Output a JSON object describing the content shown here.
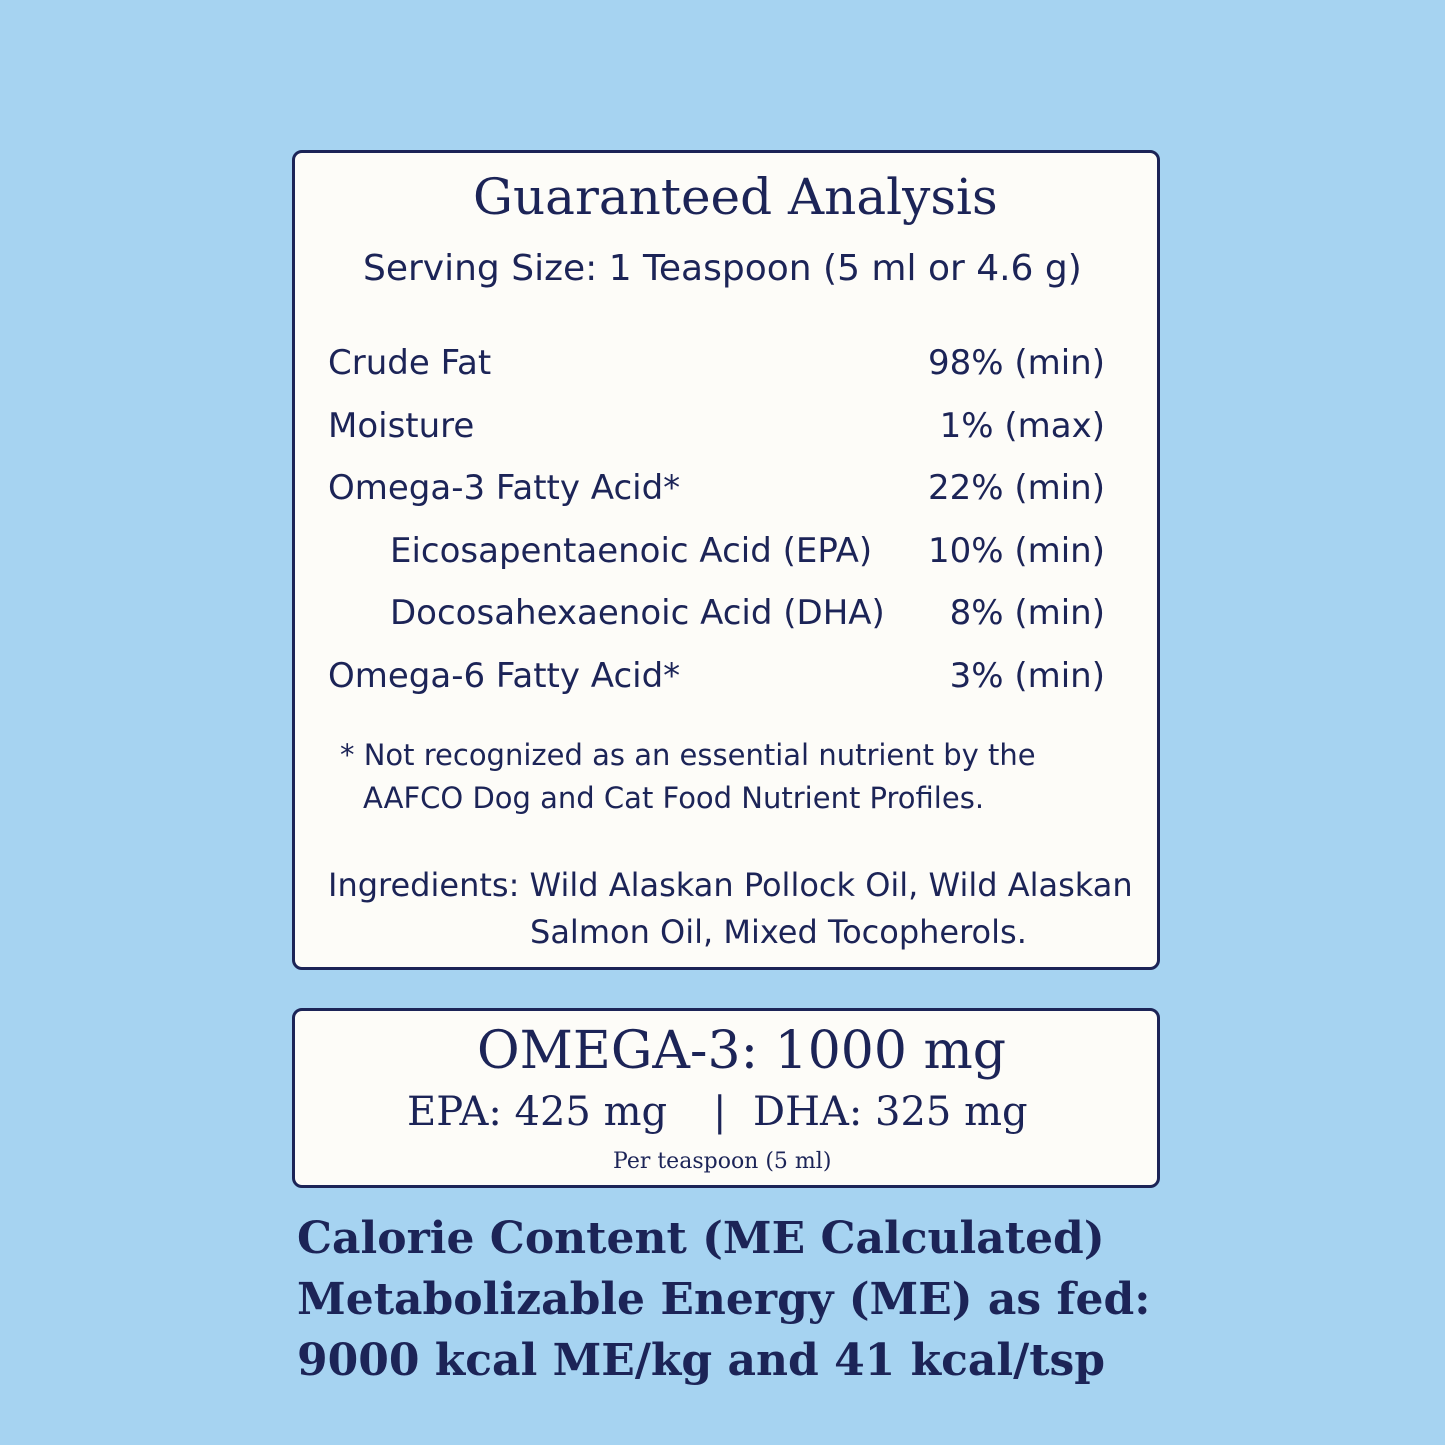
{
  "analysis": {
    "title": "Guaranteed Analysis",
    "serving": "Serving Size: 1 Teaspoon (5 ml or 4.6 g)",
    "rows": [
      [
        "Crude Fat",
        "98% (min)"
      ],
      [
        "Moisture",
        "1% (max)"
      ],
      [
        "Omega-3 Fatty Acid*",
        "22% (min)"
      ],
      [
        "Eicosapentaenoic Acid (EPA)",
        "10% (min)"
      ],
      [
        "Docosahexaenoic Acid (DHA)",
        "8% (min)"
      ],
      [
        "Omega-6 Fatty Acid*",
        "3% (min)"
      ]
    ],
    "footnote": [
      "* Not recognized as an essential nutrient by the",
      "AAFCO Dog and Cat Food Nutrient Profiles."
    ],
    "ingredients": [
      "Ingredients: Wild Alaskan Pollock Oil, Wild Alaskan",
      "Salmon Oil, Mixed Tocopherols."
    ]
  },
  "omega": {
    "headline": "OMEGA-3: 1000 mg",
    "epa": "EPA: 425 mg",
    "separator": "|",
    "dha": "DHA: 325 mg",
    "note": "Per teaspoon (5 ml)"
  },
  "calorie": {
    "lines": [
      "Calorie Content (ME Calculated)",
      "Metabolizable Energy (ME) as fed:",
      "9000 kcal ME/kg and 41 kcal/tsp"
    ]
  }
}
